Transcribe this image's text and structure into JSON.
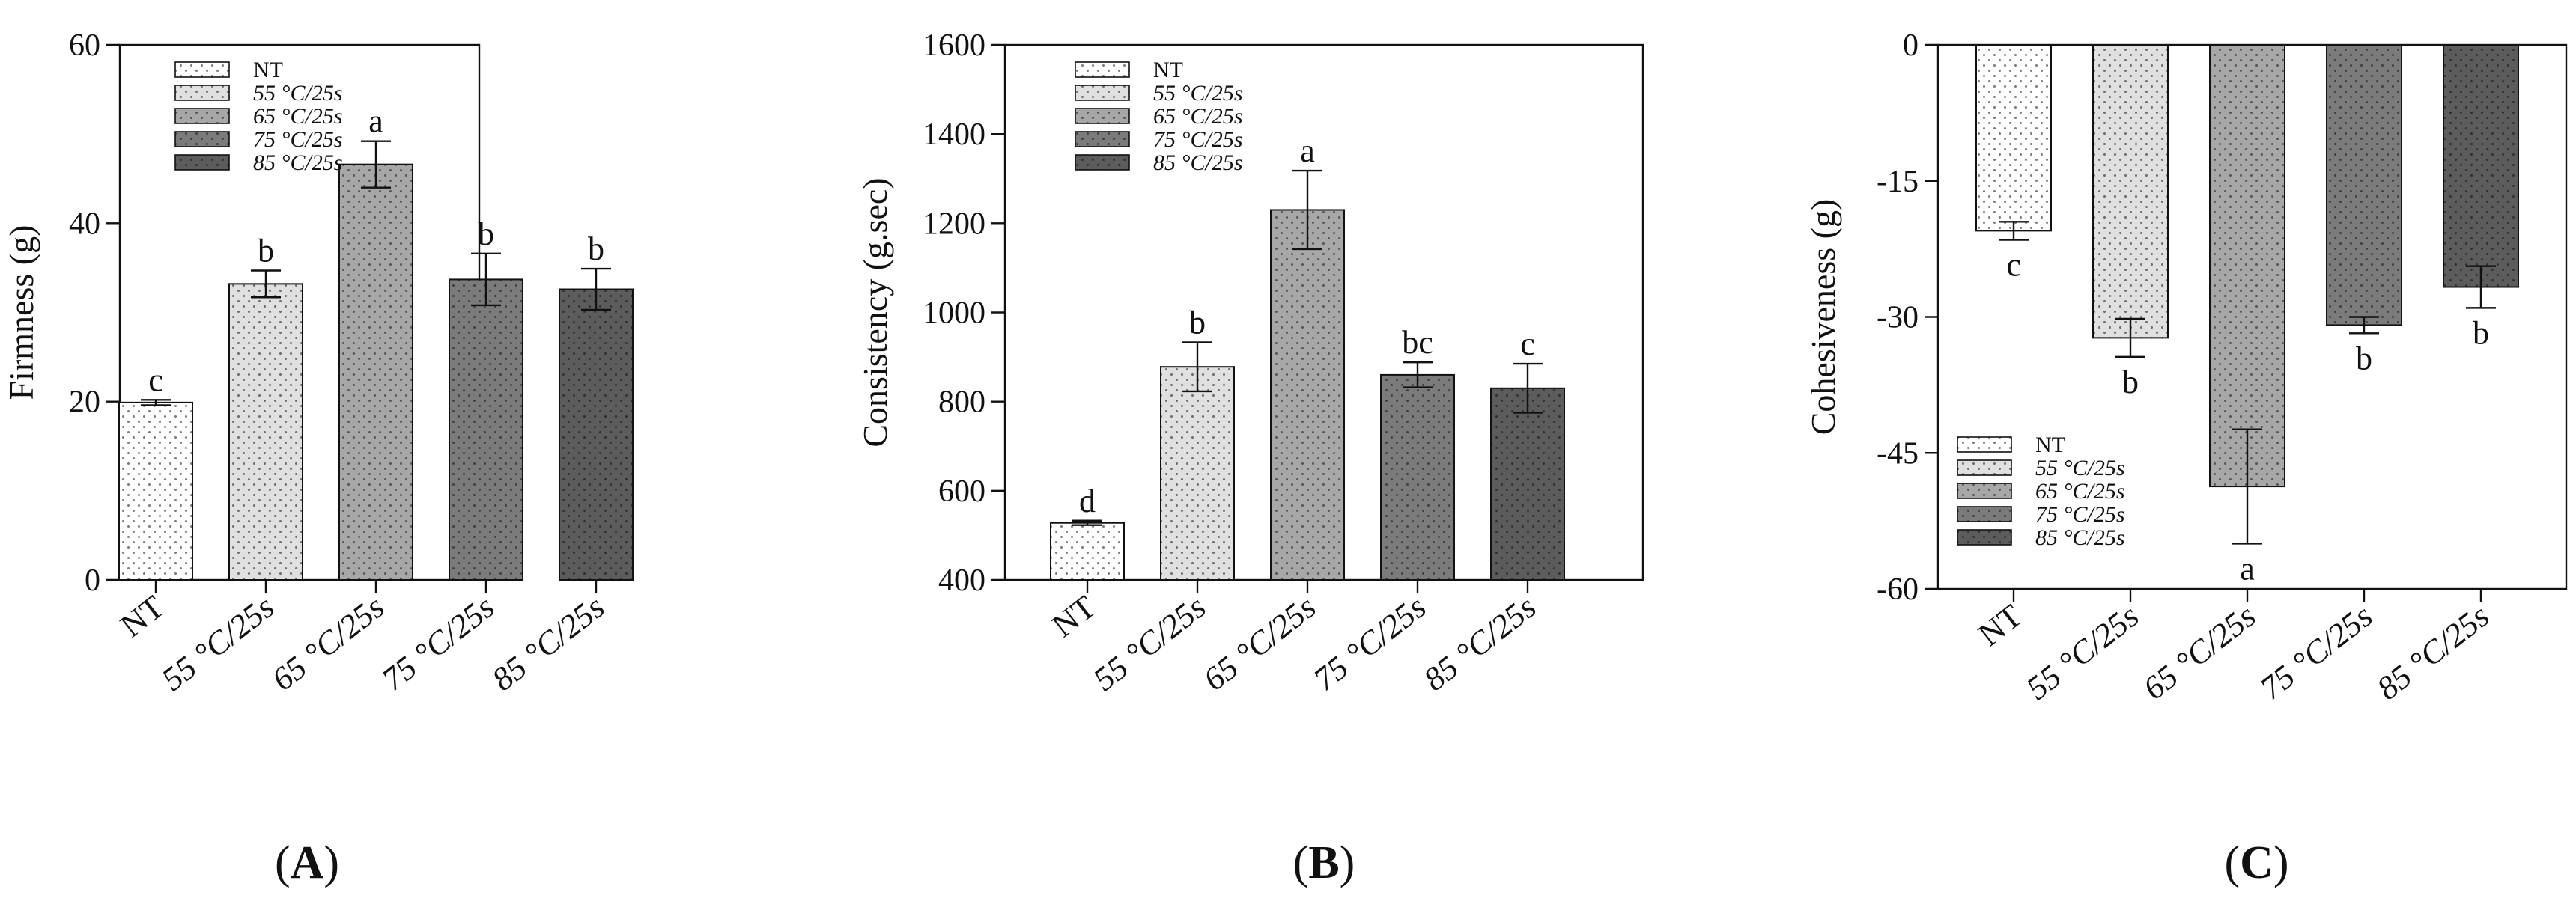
{
  "colors": {
    "fills": [
      "#ffffff",
      "#e0e0e0",
      "#a7a7a7",
      "#7b7b7b",
      "#5c5c5c"
    ],
    "dots": [
      "#7a7a7a",
      "#6c6c6c",
      "#555555",
      "#3f3f3f",
      "#303030"
    ],
    "axis": "#111111"
  },
  "chart_data": [
    {
      "type": "bar",
      "panel_label": "A",
      "categories": [
        "NT",
        "55 °C/25s",
        "65 °C/25s",
        "75 °C/25s",
        "85 °C/25s"
      ],
      "values": [
        19.9,
        33.2,
        46.6,
        33.7,
        32.6
      ],
      "errors": [
        0.3,
        1.5,
        2.6,
        2.9,
        2.3
      ],
      "significance": [
        "c",
        "b",
        "a",
        "b",
        "b"
      ],
      "ylabel": "Firmness (g)",
      "ylim": [
        0,
        60
      ],
      "yticks": [
        0,
        20,
        40,
        60
      ],
      "legend": [
        "NT",
        "55 °C/25s",
        "65 °C/25s",
        "75 °C/25s",
        "85 °C/25s"
      ],
      "legend_position": "top-left",
      "grid": false
    },
    {
      "type": "bar",
      "panel_label": "B",
      "categories": [
        "NT",
        "55 °C/25s",
        "65 °C/25s",
        "75 °C/25s",
        "85 °C/25s"
      ],
      "values": [
        528,
        878,
        1230,
        860,
        830
      ],
      "errors": [
        5,
        55,
        88,
        28,
        55
      ],
      "significance": [
        "d",
        "b",
        "a",
        "bc",
        "c"
      ],
      "ylabel": "Consistency (g.sec)",
      "ylim": [
        400,
        1600
      ],
      "yticks": [
        400,
        600,
        800,
        1000,
        1200,
        1400,
        1600
      ],
      "legend": [
        "NT",
        "55 °C/25s",
        "65 °C/25s",
        "75 °C/25s",
        "85 °C/25s"
      ],
      "legend_position": "top-left",
      "grid": false
    },
    {
      "type": "bar",
      "panel_label": "C",
      "categories": [
        "NT",
        "55 °C/25s",
        "65 °C/25s",
        "75 °C/25s",
        "85 °C/25s"
      ],
      "values": [
        -20.5,
        -32.3,
        -48.7,
        -30.9,
        -26.7
      ],
      "errors": [
        1.0,
        2.1,
        6.3,
        0.9,
        2.3
      ],
      "significance": [
        "c",
        "b",
        "a",
        "b",
        "b"
      ],
      "ylabel": "Cohesiveness  (g)",
      "ylim": [
        -60,
        0
      ],
      "yticks": [
        0,
        -15,
        -30,
        -45,
        -60
      ],
      "legend": [
        "NT",
        "55 °C/25s",
        "65 °C/25s",
        "75 °C/25s",
        "85 °C/25s"
      ],
      "legend_position": "bottom-left",
      "grid": false
    }
  ]
}
